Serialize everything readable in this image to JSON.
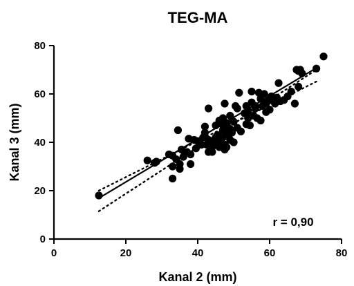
{
  "chart_data": {
    "type": "scatter",
    "title": "TEG-MA",
    "xlabel": "Kanal 2 (mm)",
    "ylabel": "Kanal 3 (mm)",
    "xlim": [
      0,
      80
    ],
    "ylim": [
      0,
      80
    ],
    "xticks": [
      0,
      20,
      40,
      60,
      80
    ],
    "yticks": [
      0,
      20,
      40,
      60,
      80
    ],
    "xtick_labels": [
      "0",
      "20",
      "40",
      "60",
      "80"
    ],
    "ytick_labels": [
      "0",
      "20",
      "40",
      "60",
      "80"
    ],
    "grid": false,
    "annotation": "r = 0,90",
    "marker_color": "#000000",
    "points": [
      [
        12.5,
        18
      ],
      [
        26,
        32.5
      ],
      [
        28,
        31.5
      ],
      [
        28.5,
        32
      ],
      [
        32,
        35
      ],
      [
        33,
        34.5
      ],
      [
        33,
        25
      ],
      [
        33,
        30
      ],
      [
        34,
        33
      ],
      [
        34.5,
        45
      ],
      [
        35,
        31
      ],
      [
        35,
        29
      ],
      [
        35.5,
        37
      ],
      [
        36,
        34
      ],
      [
        37,
        36
      ],
      [
        37.5,
        41.5
      ],
      [
        38,
        35
      ],
      [
        38,
        31
      ],
      [
        39,
        41
      ],
      [
        39.5,
        37.5
      ],
      [
        40,
        40.5
      ],
      [
        41,
        39
      ],
      [
        41.5,
        42
      ],
      [
        42,
        46.5
      ],
      [
        42,
        44
      ],
      [
        42.5,
        39
      ],
      [
        43,
        54
      ],
      [
        43,
        41
      ],
      [
        43,
        36
      ],
      [
        44,
        36
      ],
      [
        44,
        38
      ],
      [
        44.5,
        40
      ],
      [
        45,
        42
      ],
      [
        45,
        47
      ],
      [
        45.5,
        43
      ],
      [
        46,
        38
      ],
      [
        46,
        49
      ],
      [
        46.5,
        48.5
      ],
      [
        46.5,
        40
      ],
      [
        47,
        50
      ],
      [
        47,
        47
      ],
      [
        47,
        45
      ],
      [
        47,
        42
      ],
      [
        47.5,
        37
      ],
      [
        47.5,
        56
      ],
      [
        47.5,
        39
      ],
      [
        48,
        48
      ],
      [
        48,
        44
      ],
      [
        48,
        38
      ],
      [
        48.5,
        46
      ],
      [
        48.5,
        42.5
      ],
      [
        49,
        51
      ],
      [
        49,
        45.5
      ],
      [
        49,
        41
      ],
      [
        49.5,
        44
      ],
      [
        50,
        48.5
      ],
      [
        50,
        40
      ],
      [
        50.5,
        55
      ],
      [
        51,
        54
      ],
      [
        51,
        46
      ],
      [
        51.5,
        60.5
      ],
      [
        52,
        44.5
      ],
      [
        53,
        52
      ],
      [
        53.5,
        55
      ],
      [
        53.5,
        47.5
      ],
      [
        54,
        50
      ],
      [
        54,
        53
      ],
      [
        54.5,
        47
      ],
      [
        55,
        56.5
      ],
      [
        55,
        61
      ],
      [
        55.5,
        51
      ],
      [
        56,
        54
      ],
      [
        56,
        55
      ],
      [
        56.5,
        50
      ],
      [
        57,
        60.5
      ],
      [
        57.5,
        58
      ],
      [
        57.5,
        49
      ],
      [
        58,
        55
      ],
      [
        58.5,
        60
      ],
      [
        59,
        52.5
      ],
      [
        59,
        56
      ],
      [
        59.5,
        57
      ],
      [
        60,
        53.5
      ],
      [
        60.5,
        59
      ],
      [
        61,
        58
      ],
      [
        61.5,
        56
      ],
      [
        62,
        58.5
      ],
      [
        62.5,
        64.5
      ],
      [
        63,
        57
      ],
      [
        64,
        57.5
      ],
      [
        65,
        59
      ],
      [
        66,
        61
      ],
      [
        67,
        56
      ],
      [
        67.5,
        70
      ],
      [
        68,
        69.5
      ],
      [
        68,
        63
      ],
      [
        68.5,
        70
      ],
      [
        69,
        68.5
      ],
      [
        73,
        70.5
      ],
      [
        75,
        75.5
      ]
    ],
    "regression": {
      "slope": 0.8898,
      "intercept": 5.8,
      "x_range": [
        12.5,
        73.5
      ]
    },
    "confidence_band": {
      "upper": [
        [
          12.5,
          20
        ],
        [
          73.5,
          65.5
        ]
      ],
      "lower": [
        [
          12.5,
          11.5
        ],
        [
          73.5,
          70.5
        ]
      ]
    }
  }
}
